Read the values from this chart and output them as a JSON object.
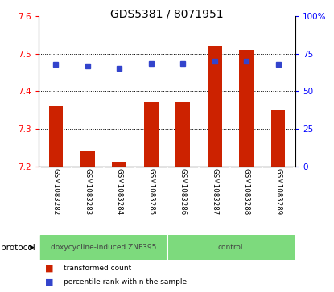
{
  "title": "GDS5381 / 8071951",
  "samples": [
    "GSM1083282",
    "GSM1083283",
    "GSM1083284",
    "GSM1083285",
    "GSM1083286",
    "GSM1083287",
    "GSM1083288",
    "GSM1083289"
  ],
  "transformed_counts": [
    7.36,
    7.24,
    7.21,
    7.37,
    7.37,
    7.52,
    7.51,
    7.35
  ],
  "percentile_ranks": [
    68,
    67,
    65,
    68.5,
    68.5,
    70,
    70,
    68
  ],
  "ylim_left": [
    7.2,
    7.6
  ],
  "ylim_right": [
    0,
    100
  ],
  "yticks_left": [
    7.2,
    7.3,
    7.4,
    7.5,
    7.6
  ],
  "yticks_right": [
    0,
    25,
    50,
    75,
    100
  ],
  "ytick_right_labels": [
    "0",
    "25",
    "50",
    "75",
    "100%"
  ],
  "protocol_groups": [
    {
      "label": "doxycycline-induced ZNF395",
      "start": 0,
      "end": 4,
      "color": "#7dda7d"
    },
    {
      "label": "control",
      "start": 4,
      "end": 8,
      "color": "#7dda7d"
    }
  ],
  "bar_color": "#cc2200",
  "dot_color": "#3344cc",
  "dot_marker": "s",
  "dot_size": 4,
  "bar_width": 0.45,
  "bar_base": 7.2,
  "grid_yticks": [
    7.3,
    7.4,
    7.5
  ],
  "label_area_color": "#c8c8c8",
  "label_divider_color": "#ffffff",
  "protocol_label": "protocol",
  "legend": [
    {
      "color": "#cc2200",
      "marker": "s",
      "label": "transformed count"
    },
    {
      "color": "#3344cc",
      "marker": "s",
      "label": "percentile rank within the sample"
    }
  ]
}
